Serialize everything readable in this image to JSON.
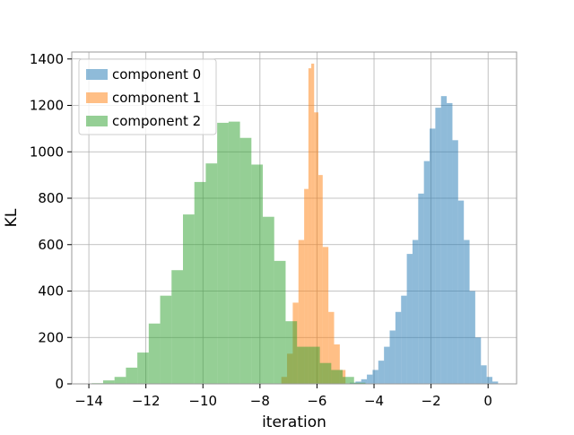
{
  "chart_data": {
    "type": "histogram",
    "title": "",
    "xlabel": "iteration",
    "ylabel": "KL",
    "xlim": [
      -14.6,
      1.0
    ],
    "ylim": [
      0,
      1430
    ],
    "xticks": [
      -14,
      -12,
      -10,
      -8,
      -6,
      -4,
      -2,
      0
    ],
    "yticks": [
      0,
      200,
      400,
      600,
      800,
      1000,
      1200,
      1400
    ],
    "grid": true,
    "legend": {
      "placement": "top-left"
    },
    "series": [
      {
        "name": "component 0",
        "color": "#1f77b4",
        "alpha": 0.5,
        "bin_edges": [
          -4.85,
          -4.65,
          -4.45,
          -4.25,
          -4.05,
          -3.85,
          -3.65,
          -3.45,
          -3.25,
          -3.05,
          -2.85,
          -2.65,
          -2.45,
          -2.25,
          -2.05,
          -1.85,
          -1.65,
          -1.45,
          -1.25,
          -1.05,
          -0.85,
          -0.65,
          -0.45,
          -0.25,
          -0.05,
          0.15,
          0.35
        ],
        "counts": [
          5,
          10,
          20,
          40,
          60,
          100,
          160,
          230,
          310,
          380,
          560,
          620,
          820,
          960,
          1100,
          1190,
          1240,
          1210,
          1050,
          790,
          620,
          400,
          200,
          80,
          30,
          10
        ]
      },
      {
        "name": "component 1",
        "color": "#ff7f0e",
        "alpha": 0.5,
        "bin_edges": [
          -7.25,
          -7.05,
          -6.85,
          -6.65,
          -6.45,
          -6.3,
          -6.2,
          -6.1,
          -5.95,
          -5.8,
          -5.6,
          -5.4,
          -5.2,
          -5.0
        ],
        "counts": [
          30,
          130,
          350,
          620,
          840,
          1360,
          1380,
          1170,
          900,
          590,
          310,
          170,
          60
        ],
        "overrides": [
          [
            -6.25,
            1150
          ],
          [
            -6.15,
            1430
          ],
          [
            -6.05,
            1220
          ]
        ]
      },
      {
        "name": "component 2",
        "color": "#2ca02c",
        "alpha": 0.5,
        "bin_edges": [
          -13.9,
          -13.5,
          -13.1,
          -12.7,
          -12.3,
          -11.9,
          -11.5,
          -11.1,
          -10.7,
          -10.3,
          -9.9,
          -9.5,
          -9.1,
          -8.7,
          -8.3,
          -7.9,
          -7.5,
          -7.1,
          -6.7,
          -6.3,
          -5.9,
          -5.5,
          -5.1,
          -4.7,
          -4.3
        ],
        "counts": [
          3,
          15,
          30,
          70,
          135,
          260,
          380,
          490,
          730,
          870,
          950,
          1125,
          1130,
          1060,
          945,
          720,
          530,
          270,
          160,
          160,
          90,
          60,
          30,
          5
        ]
      }
    ]
  }
}
